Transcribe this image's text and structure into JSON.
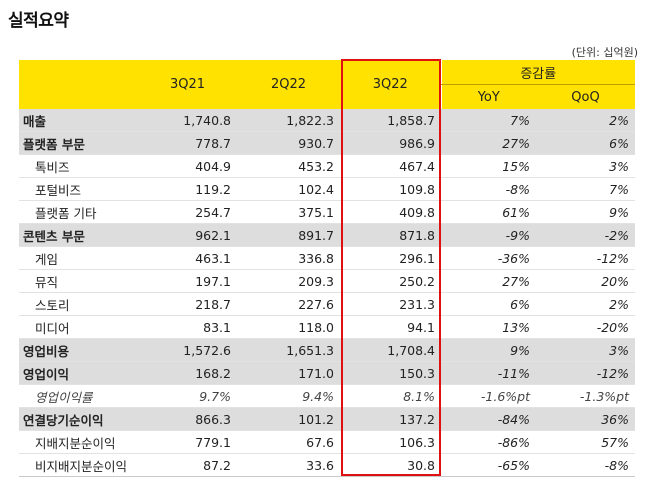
{
  "title": "실적요약",
  "unit": "(단위: 십억원)",
  "headers": {
    "periods": [
      "3Q21",
      "2Q22",
      "3Q22"
    ],
    "change_group": "증감률",
    "yoy": "YoY",
    "qoq": "QoQ"
  },
  "rows": [
    {
      "label": "매출",
      "v1": "1,740.8",
      "v2": "1,822.3",
      "v3": "1,858.7",
      "yoy": "7%",
      "qoq": "2%"
    },
    {
      "label": "플랫폼 부문",
      "v1": "778.7",
      "v2": "930.7",
      "v3": "986.9",
      "yoy": "27%",
      "qoq": "6%"
    },
    {
      "label": "톡비즈",
      "v1": "404.9",
      "v2": "453.2",
      "v3": "467.4",
      "yoy": "15%",
      "qoq": "3%"
    },
    {
      "label": "포털비즈",
      "v1": "119.2",
      "v2": "102.4",
      "v3": "109.8",
      "yoy": "-8%",
      "qoq": "7%"
    },
    {
      "label": "플랫폼 기타",
      "v1": "254.7",
      "v2": "375.1",
      "v3": "409.8",
      "yoy": "61%",
      "qoq": "9%"
    },
    {
      "label": "콘텐츠 부문",
      "v1": "962.1",
      "v2": "891.7",
      "v3": "871.8",
      "yoy": "-9%",
      "qoq": "-2%"
    },
    {
      "label": "게임",
      "v1": "463.1",
      "v2": "336.8",
      "v3": "296.1",
      "yoy": "-36%",
      "qoq": "-12%"
    },
    {
      "label": "뮤직",
      "v1": "197.1",
      "v2": "209.3",
      "v3": "250.2",
      "yoy": "27%",
      "qoq": "20%"
    },
    {
      "label": "스토리",
      "v1": "218.7",
      "v2": "227.6",
      "v3": "231.3",
      "yoy": "6%",
      "qoq": "2%"
    },
    {
      "label": "미디어",
      "v1": "83.1",
      "v2": "118.0",
      "v3": "94.1",
      "yoy": "13%",
      "qoq": "-20%"
    },
    {
      "label": "영업비용",
      "v1": "1,572.6",
      "v2": "1,651.3",
      "v3": "1,708.4",
      "yoy": "9%",
      "qoq": "3%"
    },
    {
      "label": "영업이익",
      "v1": "168.2",
      "v2": "171.0",
      "v3": "150.3",
      "yoy": "-11%",
      "qoq": "-12%"
    },
    {
      "label": "영업이익률",
      "v1": "9.7%",
      "v2": "9.4%",
      "v3": "8.1%",
      "yoy": "-1.6%pt",
      "qoq": "-1.3%pt"
    },
    {
      "label": "연결당기순이익",
      "v1": "866.3",
      "v2": "101.2",
      "v3": "137.2",
      "yoy": "-84%",
      "qoq": "36%"
    },
    {
      "label": "지배지분순이익",
      "v1": "779.1",
      "v2": "67.6",
      "v3": "106.3",
      "yoy": "-86%",
      "qoq": "57%"
    },
    {
      "label": "비지배지분순이익",
      "v1": "87.2",
      "v2": "33.6",
      "v3": "30.8",
      "yoy": "-65%",
      "qoq": "-8%"
    }
  ],
  "colors": {
    "header_bg": "#ffe200",
    "major_row_bg": "#dddddd",
    "highlight_border": "#e01010"
  }
}
